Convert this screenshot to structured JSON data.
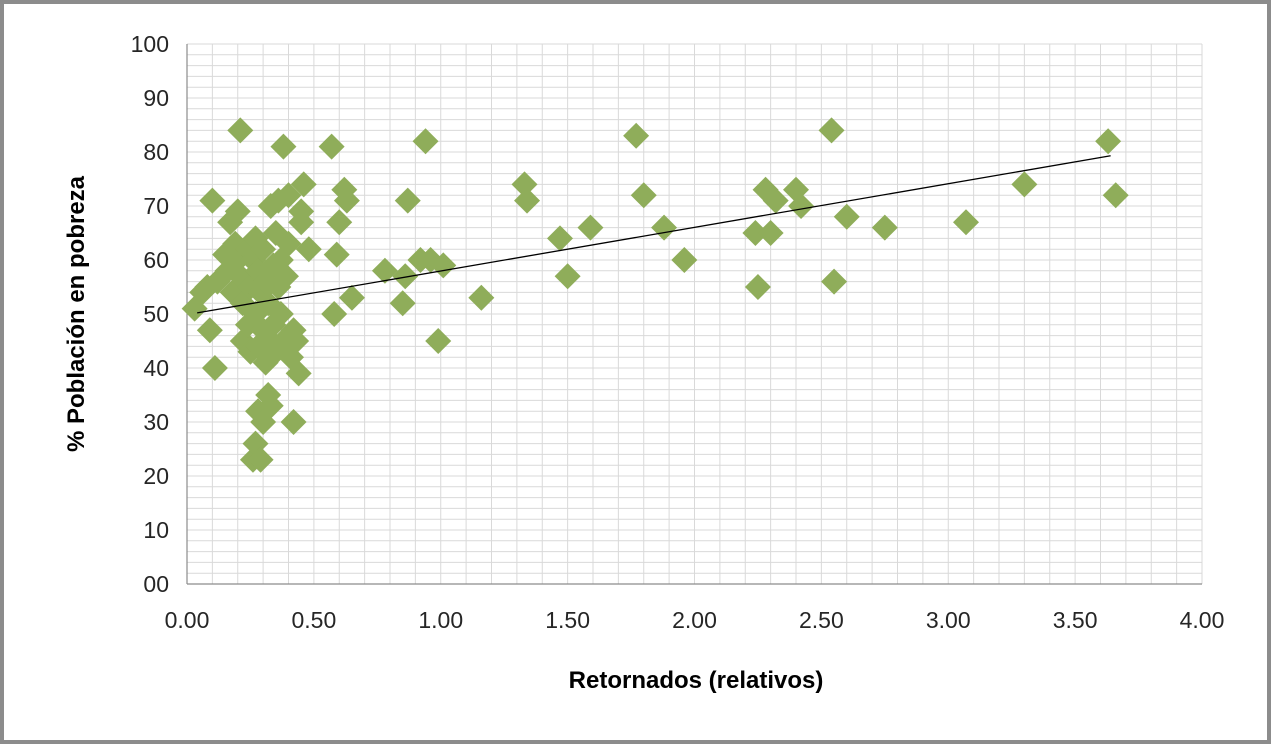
{
  "chart_data": {
    "type": "scatter",
    "xlabel": "Retornados (relativos)",
    "ylabel": "% Población en pobreza",
    "xlim": [
      0,
      4
    ],
    "ylim": [
      0,
      100
    ],
    "x_ticks": [
      "0.00",
      "0.50",
      "1.00",
      "1.50",
      "2.00",
      "2.50",
      "3.00",
      "3.50",
      "4.00"
    ],
    "y_ticks": [
      "00",
      "10",
      "20",
      "30",
      "40",
      "50",
      "60",
      "70",
      "80",
      "90",
      "100"
    ],
    "grid": true,
    "legend": "none",
    "marker": "diamond",
    "colors": {
      "marker": "#8fad5a",
      "trendline": "#000000",
      "grid": "#d9d9d9",
      "frame": "#8c8c8c"
    },
    "trendline": {
      "x": [
        0.04,
        3.64
      ],
      "y": [
        50.2,
        79.3
      ]
    },
    "points": [
      [
        0.03,
        51
      ],
      [
        0.06,
        54
      ],
      [
        0.08,
        55
      ],
      [
        0.09,
        47
      ],
      [
        0.1,
        71
      ],
      [
        0.11,
        40
      ],
      [
        0.12,
        56
      ],
      [
        0.15,
        61
      ],
      [
        0.16,
        58
      ],
      [
        0.17,
        67
      ],
      [
        0.18,
        54
      ],
      [
        0.19,
        63
      ],
      [
        0.2,
        69
      ],
      [
        0.2,
        60
      ],
      [
        0.21,
        84
      ],
      [
        0.21,
        57
      ],
      [
        0.22,
        52
      ],
      [
        0.22,
        45
      ],
      [
        0.23,
        56
      ],
      [
        0.24,
        62
      ],
      [
        0.24,
        48
      ],
      [
        0.25,
        43
      ],
      [
        0.25,
        55
      ],
      [
        0.26,
        60
      ],
      [
        0.26,
        23
      ],
      [
        0.27,
        26
      ],
      [
        0.27,
        64
      ],
      [
        0.27,
        50
      ],
      [
        0.28,
        58
      ],
      [
        0.28,
        32
      ],
      [
        0.28,
        44
      ],
      [
        0.29,
        54
      ],
      [
        0.29,
        23
      ],
      [
        0.3,
        30
      ],
      [
        0.3,
        47
      ],
      [
        0.3,
        62
      ],
      [
        0.31,
        56
      ],
      [
        0.31,
        41
      ],
      [
        0.32,
        35
      ],
      [
        0.32,
        52
      ],
      [
        0.33,
        70
      ],
      [
        0.33,
        45
      ],
      [
        0.33,
        33
      ],
      [
        0.34,
        59
      ],
      [
        0.34,
        48
      ],
      [
        0.35,
        65
      ],
      [
        0.35,
        43
      ],
      [
        0.36,
        55
      ],
      [
        0.36,
        71
      ],
      [
        0.37,
        50
      ],
      [
        0.37,
        60
      ],
      [
        0.38,
        81
      ],
      [
        0.38,
        45
      ],
      [
        0.39,
        57
      ],
      [
        0.4,
        72
      ],
      [
        0.4,
        63
      ],
      [
        0.41,
        42
      ],
      [
        0.42,
        30
      ],
      [
        0.42,
        47
      ],
      [
        0.43,
        45
      ],
      [
        0.44,
        39
      ],
      [
        0.45,
        67
      ],
      [
        0.45,
        69
      ],
      [
        0.46,
        74
      ],
      [
        0.48,
        62
      ],
      [
        0.57,
        81
      ],
      [
        0.58,
        50
      ],
      [
        0.59,
        61
      ],
      [
        0.6,
        67
      ],
      [
        0.62,
        73
      ],
      [
        0.63,
        71
      ],
      [
        0.65,
        53
      ],
      [
        0.78,
        58
      ],
      [
        0.85,
        52
      ],
      [
        0.86,
        57
      ],
      [
        0.87,
        71
      ],
      [
        0.92,
        60
      ],
      [
        0.94,
        82
      ],
      [
        0.96,
        60
      ],
      [
        0.99,
        45
      ],
      [
        1.01,
        59
      ],
      [
        1.16,
        53
      ],
      [
        1.33,
        74
      ],
      [
        1.34,
        71
      ],
      [
        1.47,
        64
      ],
      [
        1.5,
        57
      ],
      [
        1.59,
        66
      ],
      [
        1.77,
        83
      ],
      [
        1.8,
        72
      ],
      [
        1.88,
        66
      ],
      [
        1.96,
        60
      ],
      [
        2.24,
        65
      ],
      [
        2.25,
        55
      ],
      [
        2.28,
        73
      ],
      [
        2.3,
        65
      ],
      [
        2.32,
        71
      ],
      [
        2.4,
        73
      ],
      [
        2.42,
        70
      ],
      [
        2.54,
        84
      ],
      [
        2.55,
        56
      ],
      [
        2.6,
        68
      ],
      [
        2.75,
        66
      ],
      [
        3.07,
        67
      ],
      [
        3.3,
        74
      ],
      [
        3.63,
        82
      ],
      [
        3.66,
        72
      ]
    ]
  }
}
